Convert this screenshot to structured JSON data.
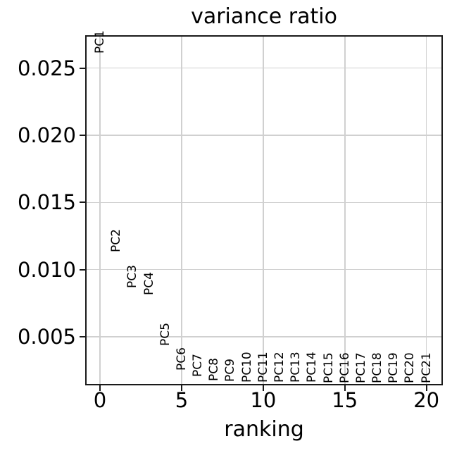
{
  "figure": {
    "background_color": "#ffffff",
    "spine_color": "#1a1a1a",
    "grid_color": "#d0d0d0",
    "text_color": "#000000"
  },
  "chart_data": {
    "type": "scatter",
    "title": "variance ratio",
    "xlabel": "ranking",
    "ylabel": "",
    "grid": true,
    "legend_position": "none",
    "marker_style": "rotated-text-labels",
    "label_rotation_degrees": 90,
    "xlim": [
      -0.82,
      20.92
    ],
    "ylim": [
      0.00148,
      0.02734
    ],
    "xticks": [
      0,
      5,
      10,
      15,
      20
    ],
    "xtick_labels": [
      "0",
      "5",
      "10",
      "15",
      "20"
    ],
    "yticks": [
      0.005,
      0.01,
      0.015,
      0.02,
      0.025
    ],
    "ytick_labels": [
      "0.005",
      "0.010",
      "0.015",
      "0.020",
      "0.025"
    ],
    "points": [
      {
        "label": "PC1",
        "x": 0,
        "y": 0.0261
      },
      {
        "label": "PC2",
        "x": 1,
        "y": 0.0113
      },
      {
        "label": "PC3",
        "x": 2,
        "y": 0.0086
      },
      {
        "label": "PC4",
        "x": 3,
        "y": 0.0081
      },
      {
        "label": "PC5",
        "x": 4,
        "y": 0.0043
      },
      {
        "label": "PC6",
        "x": 5,
        "y": 0.0025
      },
      {
        "label": "PC7",
        "x": 6,
        "y": 0.002
      },
      {
        "label": "PC8",
        "x": 7,
        "y": 0.0017
      },
      {
        "label": "PC9",
        "x": 8,
        "y": 0.00163
      },
      {
        "label": "PC10",
        "x": 9,
        "y": 0.00161
      },
      {
        "label": "PC11",
        "x": 10,
        "y": 0.00159
      },
      {
        "label": "PC12",
        "x": 11,
        "y": 0.00158
      },
      {
        "label": "PC13",
        "x": 12,
        "y": 0.00157
      },
      {
        "label": "PC14",
        "x": 13,
        "y": 0.00156
      },
      {
        "label": "PC15",
        "x": 14,
        "y": 0.00155
      },
      {
        "label": "PC16",
        "x": 15,
        "y": 0.00155
      },
      {
        "label": "PC17",
        "x": 16,
        "y": 0.00154
      },
      {
        "label": "PC18",
        "x": 17,
        "y": 0.00154
      },
      {
        "label": "PC19",
        "x": 18,
        "y": 0.00153
      },
      {
        "label": "PC20",
        "x": 19,
        "y": 0.00153
      },
      {
        "label": "PC21",
        "x": 20,
        "y": 0.00152
      }
    ]
  }
}
